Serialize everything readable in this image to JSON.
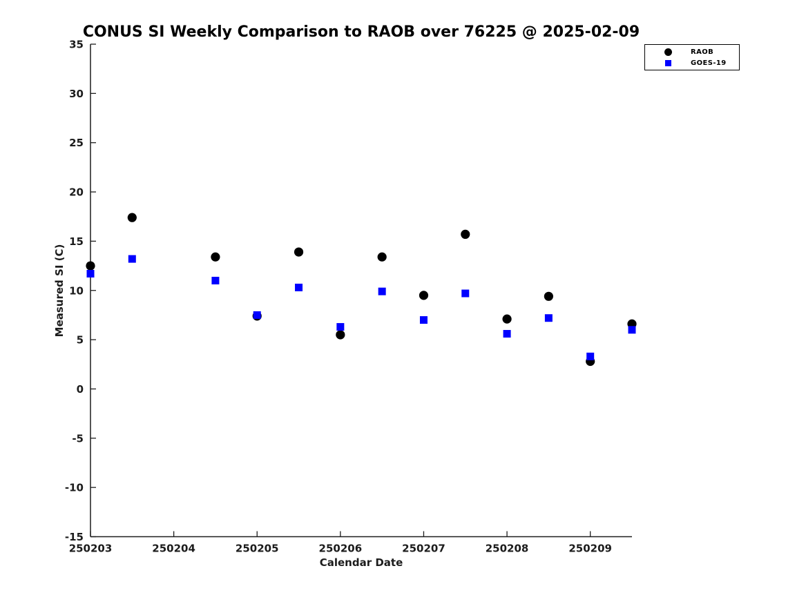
{
  "chart_data": {
    "type": "scatter",
    "title": "CONUS SI Weekly Comparison to RAOB over 76225 @ 2025-02-09",
    "xlabel": "Calendar Date",
    "ylabel": "Measured SI (C)",
    "xlim": [
      250203,
      250209.5
    ],
    "ylim": [
      -15,
      35
    ],
    "x_ticks": [
      250203,
      250204,
      250205,
      250206,
      250207,
      250208,
      250209
    ],
    "x_tick_labels": [
      "250203",
      "250204",
      "250205",
      "250206",
      "250207",
      "250208",
      "250209"
    ],
    "y_ticks": [
      -15,
      -10,
      -5,
      0,
      5,
      10,
      15,
      20,
      25,
      30,
      35
    ],
    "y_tick_labels": [
      "-15",
      "-10",
      "-5",
      "0",
      "5",
      "10",
      "15",
      "20",
      "25",
      "30",
      "35"
    ],
    "grid": false,
    "legend_position": "outside-top-right",
    "x": [
      250203,
      250203.5,
      250204.5,
      250205,
      250205.5,
      250206,
      250206.5,
      250207,
      250207.5,
      250208,
      250208.5,
      250209,
      250209.5
    ],
    "series": [
      {
        "name": "RAOB",
        "marker": "circle",
        "color": "#000000",
        "values": [
          12.5,
          17.4,
          13.4,
          7.4,
          13.9,
          5.5,
          13.4,
          9.5,
          15.7,
          7.1,
          9.4,
          2.8,
          6.6
        ]
      },
      {
        "name": "GOES-19",
        "marker": "square",
        "color": "#0000ff",
        "values": [
          11.7,
          13.2,
          11.0,
          7.5,
          10.3,
          6.3,
          9.9,
          7.0,
          9.7,
          5.6,
          7.2,
          3.3,
          6.0
        ]
      }
    ]
  }
}
